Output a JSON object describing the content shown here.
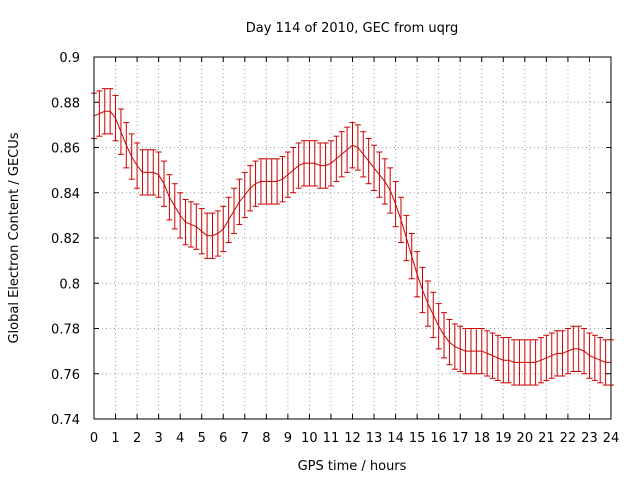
{
  "chart_data": {
    "type": "line",
    "title": "Day 114 of 2010, GEC from uqrg",
    "xlabel": "GPS time / hours",
    "ylabel": "Global Electron Content / GECUs",
    "xlim": [
      0,
      24
    ],
    "ylim": [
      0.74,
      0.9
    ],
    "x_ticks": [
      "0",
      "1",
      "2",
      "3",
      "4",
      "5",
      "6",
      "7",
      "8",
      "9",
      "10",
      "11",
      "12",
      "13",
      "14",
      "15",
      "16",
      "17",
      "18",
      "19",
      "20",
      "21",
      "22",
      "23",
      "24"
    ],
    "y_ticks": [
      "0.74",
      "0.76",
      "0.78",
      "0.8",
      "0.82",
      "0.84",
      "0.86",
      "0.88",
      "0.9"
    ],
    "grid": true,
    "legend": "none",
    "series": [
      {
        "color": "#cc0000",
        "error": 0.01,
        "x": [
          0,
          0.25,
          0.5,
          0.75,
          1,
          1.25,
          1.5,
          1.75,
          2,
          2.25,
          2.5,
          2.75,
          3,
          3.25,
          3.5,
          3.75,
          4,
          4.25,
          4.5,
          4.75,
          5,
          5.25,
          5.5,
          5.75,
          6,
          6.25,
          6.5,
          6.75,
          7,
          7.25,
          7.5,
          7.75,
          8,
          8.25,
          8.5,
          8.75,
          9,
          9.25,
          9.5,
          9.75,
          10,
          10.25,
          10.5,
          10.75,
          11,
          11.25,
          11.5,
          11.75,
          12,
          12.25,
          12.5,
          12.75,
          13,
          13.25,
          13.5,
          13.75,
          14,
          14.25,
          14.5,
          14.75,
          15,
          15.25,
          15.5,
          15.75,
          16,
          16.25,
          16.5,
          16.75,
          17,
          17.25,
          17.5,
          17.75,
          18,
          18.25,
          18.5,
          18.75,
          19,
          19.25,
          19.5,
          19.75,
          20,
          20.25,
          20.5,
          20.75,
          21,
          21.25,
          21.5,
          21.75,
          22,
          22.25,
          22.5,
          22.75,
          23,
          23.25,
          23.5,
          23.75,
          24
        ],
        "y": [
          0.874,
          0.875,
          0.876,
          0.876,
          0.873,
          0.867,
          0.861,
          0.856,
          0.852,
          0.849,
          0.849,
          0.849,
          0.848,
          0.844,
          0.838,
          0.834,
          0.83,
          0.827,
          0.826,
          0.825,
          0.823,
          0.821,
          0.821,
          0.822,
          0.824,
          0.828,
          0.832,
          0.836,
          0.839,
          0.842,
          0.844,
          0.845,
          0.845,
          0.845,
          0.845,
          0.846,
          0.848,
          0.85,
          0.852,
          0.853,
          0.853,
          0.853,
          0.852,
          0.852,
          0.853,
          0.855,
          0.857,
          0.859,
          0.861,
          0.86,
          0.857,
          0.854,
          0.851,
          0.848,
          0.845,
          0.841,
          0.835,
          0.828,
          0.82,
          0.812,
          0.804,
          0.797,
          0.791,
          0.786,
          0.781,
          0.777,
          0.774,
          0.772,
          0.771,
          0.77,
          0.77,
          0.77,
          0.77,
          0.769,
          0.768,
          0.767,
          0.766,
          0.766,
          0.765,
          0.765,
          0.765,
          0.765,
          0.765,
          0.766,
          0.767,
          0.768,
          0.769,
          0.769,
          0.77,
          0.771,
          0.771,
          0.77,
          0.768,
          0.767,
          0.766,
          0.765,
          0.765
        ]
      }
    ]
  }
}
